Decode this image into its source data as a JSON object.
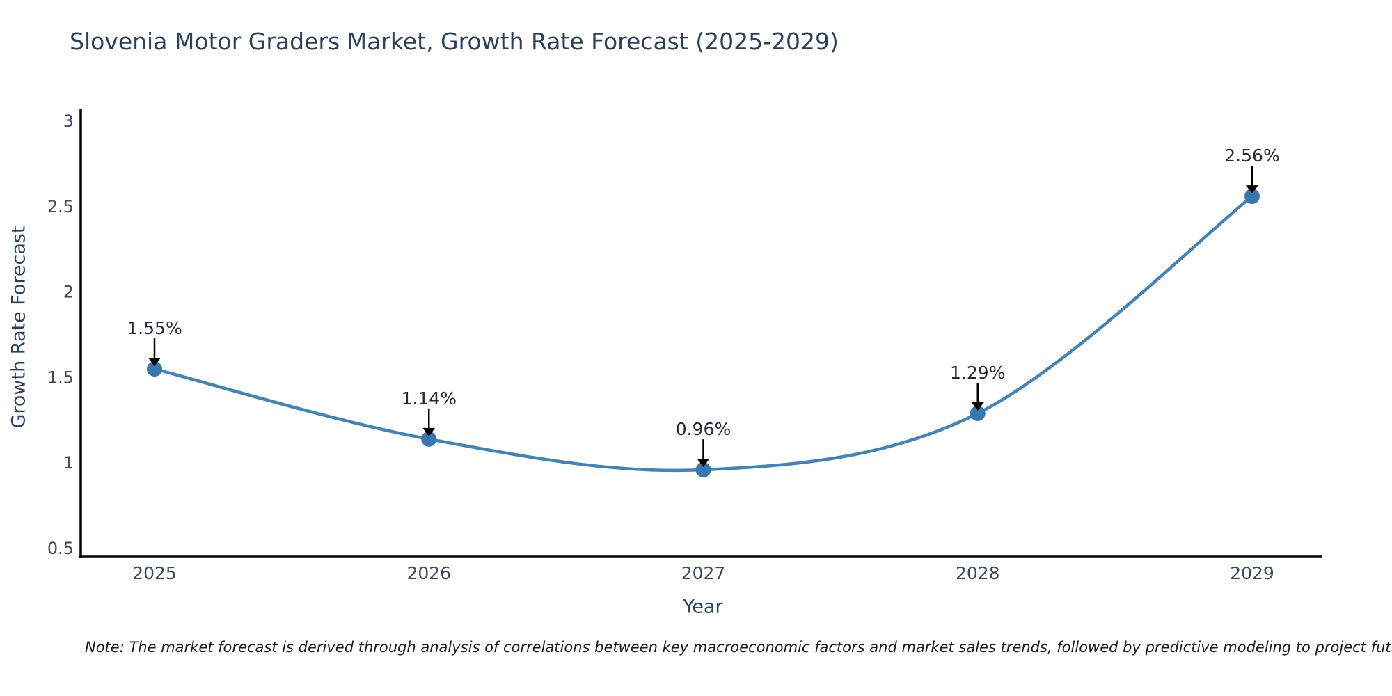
{
  "title": "Slovenia Motor Graders Market, Growth Rate Forecast (2025-2029)",
  "footnote": "Note: The market forecast is derived through analysis of correlations between key macroeconomic factors and market sales trends, followed by predictive modeling to project future sales",
  "chart_data": {
    "type": "line",
    "title": "Slovenia Motor Graders Market, Growth Rate Forecast (2025-2029)",
    "xlabel": "Year",
    "ylabel": "Growth Rate Forecast",
    "x": [
      2025,
      2026,
      2027,
      2028,
      2029
    ],
    "categories": [
      "2025",
      "2026",
      "2027",
      "2028",
      "2029"
    ],
    "values": [
      1.55,
      1.14,
      0.96,
      1.29,
      2.56
    ],
    "point_labels": [
      "1.55%",
      "1.14%",
      "0.96%",
      "1.29%",
      "2.56%"
    ],
    "ylim": [
      0.5,
      3
    ],
    "yticks": [
      3,
      2.5,
      2,
      1.5,
      1,
      0.5
    ],
    "ytick_labels": [
      "3",
      "2.5",
      "2",
      "1.5",
      "1",
      "0.5"
    ],
    "line_shape": "spline",
    "grid": false,
    "legend": "none",
    "colors": {
      "line": "#4183bb",
      "marker": "#3a76b0",
      "axis": "#000000",
      "tick_text": "#3b4a63",
      "title_text": "#2b3f5e",
      "annotation_text": "#222a3a",
      "annotation_arrow": "#000000",
      "background": "#ffffff"
    }
  }
}
